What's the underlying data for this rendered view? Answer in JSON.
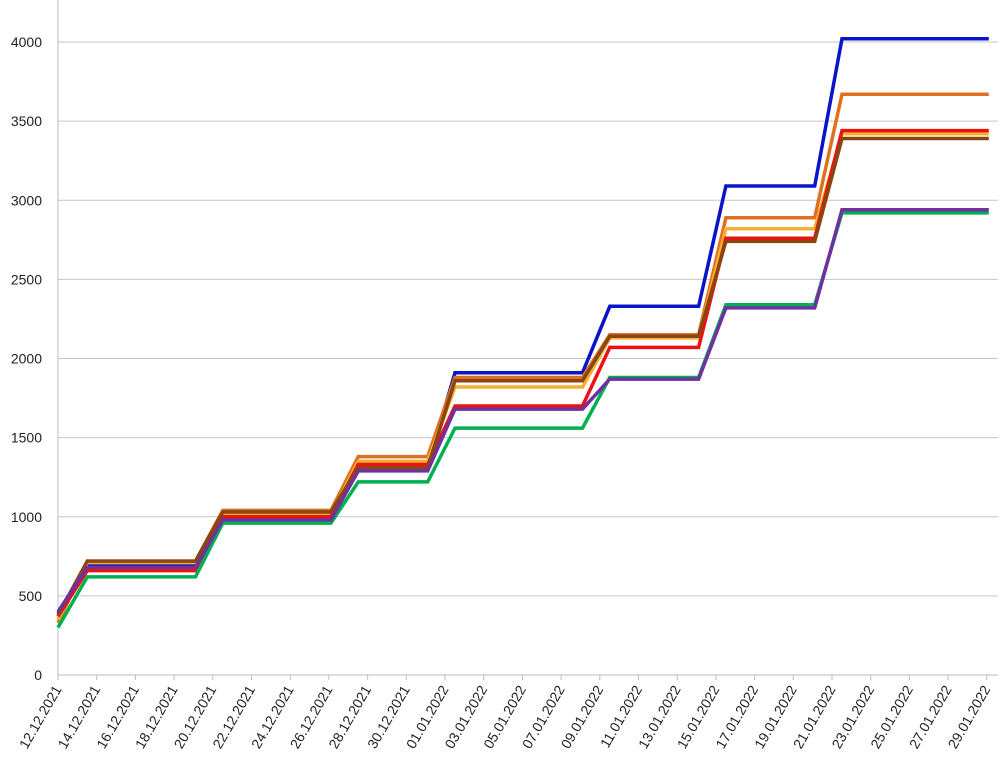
{
  "chart_data": {
    "type": "line",
    "title": "",
    "xlabel": "",
    "ylabel": "",
    "ylim": [
      0,
      4000
    ],
    "yticks": [
      0,
      500,
      1000,
      1500,
      2000,
      2500,
      3000,
      3500,
      4000
    ],
    "grid": true,
    "legend": "none",
    "x_tick_labels": [
      "12.12.2021",
      "14.12.2021",
      "16.12.2021",
      "18.12.2021",
      "20.12.2021",
      "22.12.2021",
      "24.12.2021",
      "26.12.2021",
      "28.12.2021",
      "30.12.2021",
      "01.01.2022",
      "03.01.2022",
      "05.01.2022",
      "07.01.2022",
      "09.01.2022",
      "11.01.2022",
      "13.01.2022",
      "15.01.2022",
      "17.01.2022",
      "19.01.2022",
      "21.01.2022",
      "23.01.2022",
      "25.01.2022",
      "27.01.2022",
      "29.01.2022"
    ],
    "x": [
      "12.12.2021",
      "13.12.2021",
      "19.12.2021",
      "20.12.2021",
      "26.12.2021",
      "27.12.2021",
      "31.12.2021",
      "01.01.2022",
      "08.01.2022",
      "09.01.2022",
      "14.01.2022",
      "15.01.2022",
      "20.01.2022",
      "21.01.2022",
      "29.01.2022"
    ],
    "series": [
      {
        "color": "#0a14c8",
        "values": [
          390,
          700,
          700,
          990,
          990,
          1320,
          1320,
          1910,
          1910,
          2330,
          2330,
          3090,
          3090,
          4020,
          4020
        ]
      },
      {
        "color": "#e07020",
        "values": [
          330,
          720,
          720,
          1040,
          1040,
          1380,
          1380,
          1880,
          1880,
          2150,
          2150,
          2890,
          2890,
          3670,
          3670
        ]
      },
      {
        "color": "#f5b030",
        "values": [
          350,
          710,
          710,
          1010,
          1010,
          1350,
          1350,
          1820,
          1820,
          2130,
          2130,
          2820,
          2820,
          3420,
          3420
        ]
      },
      {
        "color": "#ee1111",
        "values": [
          370,
          660,
          660,
          1000,
          1000,
          1330,
          1330,
          1700,
          1700,
          2070,
          2070,
          2760,
          2760,
          3440,
          3440
        ]
      },
      {
        "color": "#8b4513",
        "values": [
          380,
          720,
          720,
          1030,
          1030,
          1310,
          1310,
          1860,
          1860,
          2140,
          2140,
          2740,
          2740,
          3390,
          3390
        ]
      },
      {
        "color": "#00b050",
        "values": [
          300,
          620,
          620,
          960,
          960,
          1220,
          1220,
          1560,
          1560,
          1880,
          1880,
          2340,
          2340,
          2920,
          2920
        ]
      },
      {
        "color": "#7030a0",
        "values": [
          400,
          680,
          680,
          980,
          980,
          1290,
          1290,
          1680,
          1680,
          1870,
          1870,
          2320,
          2320,
          2940,
          2940
        ]
      }
    ]
  }
}
